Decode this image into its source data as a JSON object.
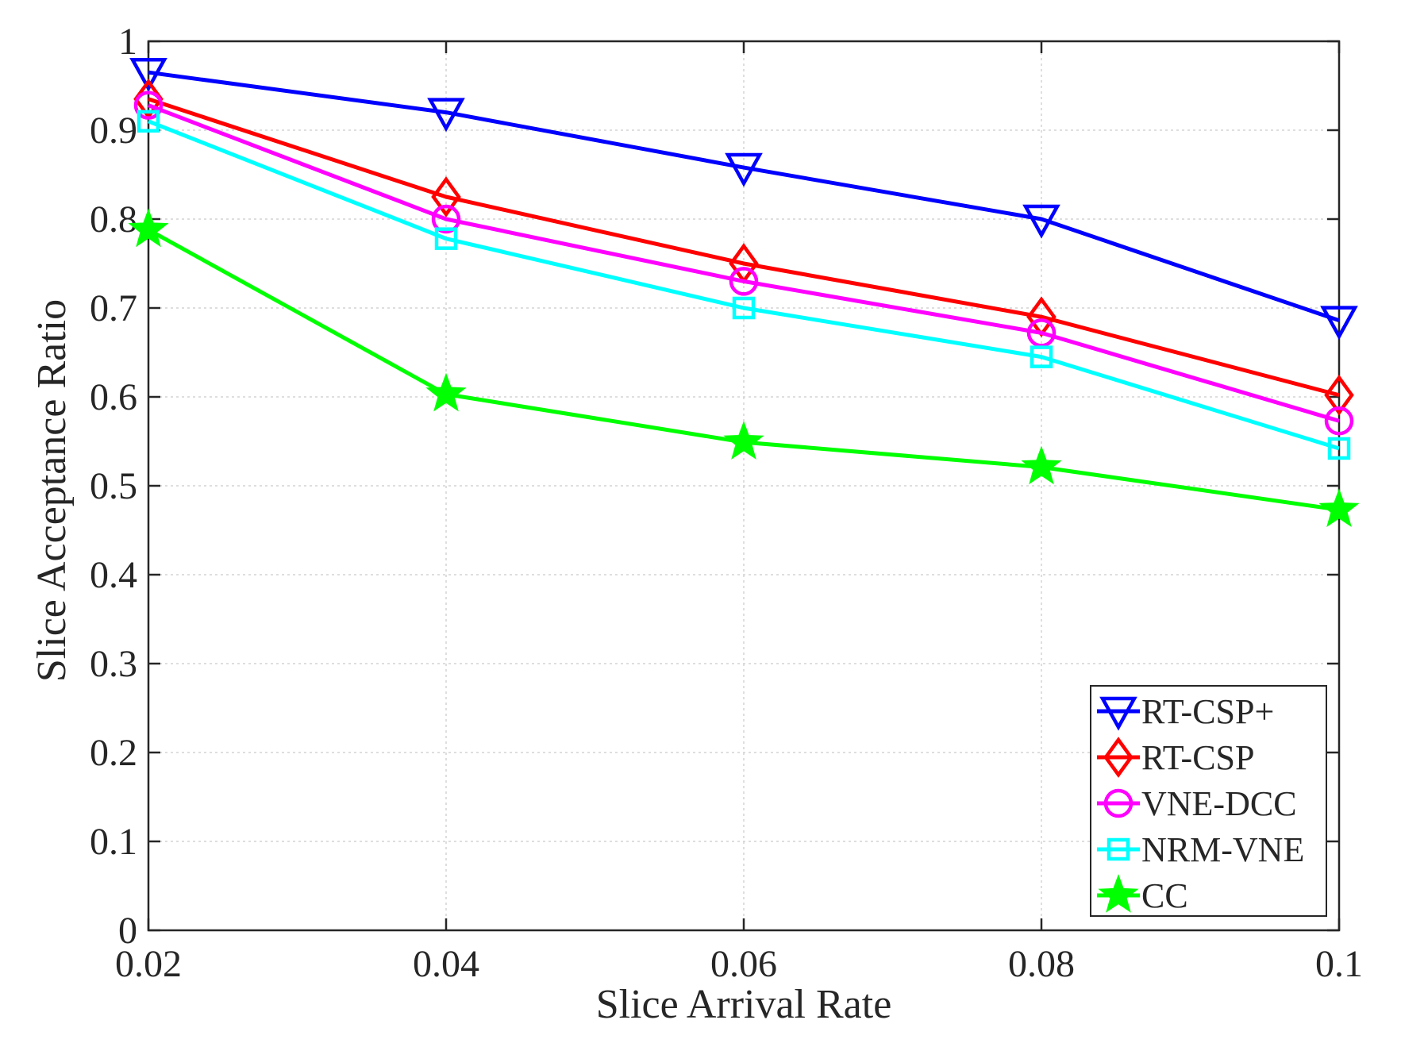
{
  "chart_data": {
    "type": "line",
    "title": "",
    "xlabel": "Slice Arrival Rate",
    "ylabel": "Slice Acceptance Ratio",
    "x": [
      0.02,
      0.04,
      0.06,
      0.08,
      0.1
    ],
    "xlim": [
      0.02,
      0.1
    ],
    "ylim": [
      0,
      1
    ],
    "xticks": [
      0.02,
      0.04,
      0.06,
      0.08,
      0.1
    ],
    "xtick_labels": [
      "0.02",
      "0.04",
      "0.06",
      "0.08",
      "0.1"
    ],
    "yticks": [
      0,
      0.1,
      0.2,
      0.3,
      0.4,
      0.5,
      0.6,
      0.7,
      0.8,
      0.9,
      1
    ],
    "ytick_labels": [
      "0",
      "0.1",
      "0.2",
      "0.3",
      "0.4",
      "0.5",
      "0.6",
      "0.7",
      "0.8",
      "0.9",
      "1"
    ],
    "grid": true,
    "legend_position": "bottom-right",
    "series": [
      {
        "name": "RT-CSP+",
        "marker": "triangle-down",
        "color": "#0000ff",
        "values": [
          0.965,
          0.92,
          0.858,
          0.8,
          0.686
        ]
      },
      {
        "name": "RT-CSP",
        "marker": "diamond",
        "color": "#ff0000",
        "values": [
          0.935,
          0.825,
          0.75,
          0.69,
          0.602
        ]
      },
      {
        "name": "VNE-DCC",
        "marker": "circle",
        "color": "#ff00ff",
        "values": [
          0.928,
          0.8,
          0.73,
          0.672,
          0.573
        ]
      },
      {
        "name": "NRM-VNE",
        "marker": "square",
        "color": "#00ffff",
        "values": [
          0.91,
          0.778,
          0.7,
          0.645,
          0.542
        ]
      },
      {
        "name": "CC",
        "marker": "star",
        "color": "#00ff00",
        "values": [
          0.788,
          0.603,
          0.549,
          0.521,
          0.473
        ]
      }
    ]
  }
}
